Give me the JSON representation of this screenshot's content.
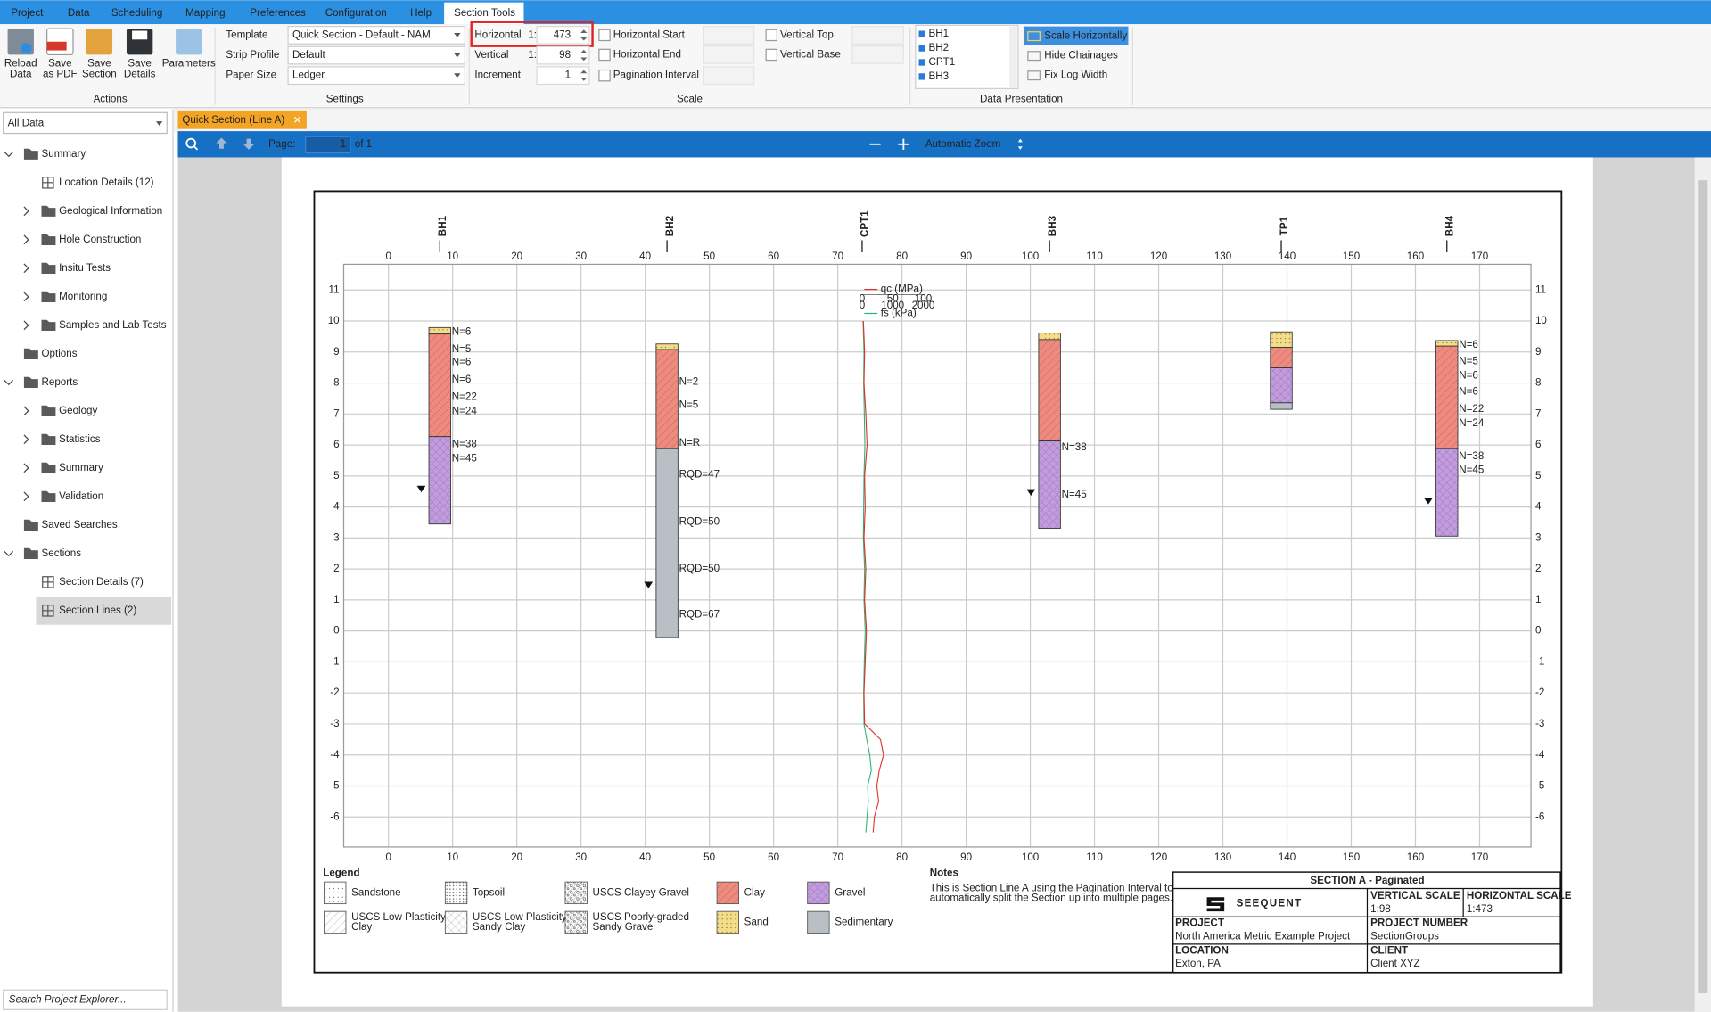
{
  "menu": [
    "Project",
    "Data",
    "Scheduling",
    "Mapping",
    "Preferences",
    "Configuration",
    "Help",
    "Section Tools"
  ],
  "ribbon": {
    "groups": [
      "Actions",
      "Settings",
      "Scale",
      "Data Presentation"
    ],
    "buttons": [
      [
        "Reload",
        "Data"
      ],
      [
        "Save",
        "as PDF"
      ],
      [
        "Save",
        "Section"
      ],
      [
        "Save",
        "Details"
      ],
      [
        "Parameters"
      ]
    ],
    "settings": [
      {
        "label": "Template",
        "value": "Quick Section - Default - NAM"
      },
      {
        "label": "Strip Profile",
        "value": "Default"
      },
      {
        "label": "Paper Size",
        "value": "Ledger"
      }
    ],
    "scale_inputs": [
      {
        "label": "Horizontal",
        "prefix": "1:",
        "value": 473
      },
      {
        "label": "Vertical",
        "prefix": "1:",
        "value": 98
      },
      {
        "label": "Increment",
        "value": 1
      }
    ],
    "scale_checks": [
      "Horizontal Start",
      "Horizontal End",
      "Pagination Interval",
      "Vertical Top",
      "Vertical Base"
    ],
    "locations": [
      "BH1",
      "BH2",
      "CPT1",
      "BH3"
    ],
    "options": [
      "Scale Horizontally",
      "Hide Chainages",
      "Fix Log Width"
    ]
  },
  "explorer": {
    "filter": "All Data",
    "tree": [
      "Summary",
      "Location Details (12)",
      "Geological Information",
      "Hole Construction",
      "Insitu Tests",
      "Monitoring",
      "Samples and Lab Tests",
      "Options",
      "Reports",
      "Geology",
      "Statistics",
      "Summary",
      "Validation",
      "Saved Searches",
      "Sections",
      "Section Details (7)",
      "Section Lines (2)"
    ],
    "search": "Search Project Explorer..."
  },
  "viewer": {
    "tab": "Quick Section (Line A)",
    "page_label": "Page:",
    "page": 1,
    "page_count": "of 1",
    "zoom": "Automatic Zoom"
  },
  "section": {
    "xlim": [
      -6.97,
      178.0
    ],
    "ylim": [
      -6.97,
      11.83
    ],
    "xticks": [
      0,
      10,
      20,
      30,
      40,
      50,
      60,
      70,
      80,
      90,
      100,
      110,
      120,
      130,
      140,
      150,
      160,
      170
    ],
    "yticks": [
      -6,
      -5,
      -4,
      -3,
      -2,
      -1,
      0,
      1,
      2,
      3,
      4,
      5,
      6,
      7,
      8,
      9,
      10,
      11
    ],
    "boreholes": [
      {
        "name": "BH1",
        "x": 8.0,
        "water": 4.58,
        "layers": [
          {
            "soil": "Sand",
            "top": 9.79,
            "bottom": 9.58
          },
          {
            "soil": "Clay",
            "top": 9.58,
            "bottom": 6.27
          },
          {
            "soil": "Gravel",
            "top": 6.27,
            "bottom": 3.45
          }
        ],
        "labels": [
          {
            "text": "N=6",
            "elev": 9.65
          },
          {
            "text": "N=5",
            "elev": 9.08
          },
          {
            "text": "N=6",
            "elev": 8.66
          },
          {
            "text": "N=6",
            "elev": 8.1
          },
          {
            "text": "N=22",
            "elev": 7.54
          },
          {
            "text": "N=24",
            "elev": 7.08
          },
          {
            "text": "N=38",
            "elev": 6.02
          },
          {
            "text": "N=45",
            "elev": 5.56
          }
        ]
      },
      {
        "name": "BH2",
        "x": 43.4,
        "water": 1.48,
        "layers": [
          {
            "soil": "Sand",
            "top": 9.26,
            "bottom": 9.08
          },
          {
            "soil": "Clay",
            "top": 9.08,
            "bottom": 5.88
          },
          {
            "soil": "Sedimentary",
            "top": 5.88,
            "bottom": -0.21
          }
        ],
        "labels": [
          {
            "text": "N=2",
            "elev": 8.03
          },
          {
            "text": "N=5",
            "elev": 7.29
          },
          {
            "text": "N=R",
            "elev": 6.06
          },
          {
            "text": "RQD=47",
            "elev": 5.04
          },
          {
            "text": "RQD=50",
            "elev": 3.52
          },
          {
            "text": "RQD=50",
            "elev": 2.01
          },
          {
            "text": "RQD=67",
            "elev": 0.53
          }
        ]
      },
      {
        "name": "BH3",
        "x": 103.0,
        "water": 4.47,
        "layers": [
          {
            "soil": "Sand",
            "top": 9.61,
            "bottom": 9.4
          },
          {
            "soil": "Clay",
            "top": 9.4,
            "bottom": 6.13
          },
          {
            "soil": "Gravel",
            "top": 6.13,
            "bottom": 3.31
          }
        ],
        "labels": [
          {
            "text": "N=38",
            "elev": 5.92
          },
          {
            "text": "N=45",
            "elev": 4.4
          }
        ]
      },
      {
        "name": "TP1",
        "x": 139.1,
        "layers": [
          {
            "soil": "Sand",
            "top": 9.65,
            "bottom": 9.15
          },
          {
            "soil": "Clay",
            "top": 9.15,
            "bottom": 8.49
          },
          {
            "soil": "Gravel",
            "top": 8.49,
            "bottom": 7.36
          },
          {
            "soil": "Sedimentary",
            "top": 7.36,
            "bottom": 7.15
          }
        ],
        "labels": []
      },
      {
        "name": "BH4",
        "x": 164.9,
        "water": 4.19,
        "layers": [
          {
            "soil": "Sand",
            "top": 9.37,
            "bottom": 9.19
          },
          {
            "soil": "Clay",
            "top": 9.19,
            "bottom": 5.88
          },
          {
            "soil": "Gravel",
            "top": 5.88,
            "bottom": 3.06
          }
        ],
        "labels": [
          {
            "text": "N=6",
            "elev": 9.23
          },
          {
            "text": "N=5",
            "elev": 8.7
          },
          {
            "text": "N=6",
            "elev": 8.24
          },
          {
            "text": "N=6",
            "elev": 7.71
          },
          {
            "text": "N=22",
            "elev": 7.15
          },
          {
            "text": "N=24",
            "elev": 6.69
          },
          {
            "text": "N=38",
            "elev": 5.63
          },
          {
            "text": "N=45",
            "elev": 5.18
          }
        ]
      }
    ],
    "cpt": {
      "name": "CPT1",
      "x": 73.8,
      "qc_label": "qc (MPa)",
      "fs_label": "fs (kPa)",
      "qc_scale": [
        0,
        50,
        100
      ],
      "fs_scale": [
        0,
        1000,
        2000
      ],
      "elev": [
        10,
        9,
        8,
        7,
        6,
        5,
        4,
        3,
        2,
        1,
        0,
        -1,
        -2,
        -3,
        -3.5,
        -4,
        -4.5,
        -5,
        -5.5,
        -6,
        -6.5
      ],
      "qc": [
        2,
        4,
        3,
        6,
        8,
        4,
        5,
        3,
        6,
        4,
        7,
        5,
        3,
        4,
        30,
        35,
        28,
        24,
        27,
        20,
        18
      ],
      "fs": [
        30,
        60,
        50,
        70,
        90,
        60,
        50,
        40,
        80,
        60,
        100,
        70,
        50,
        60,
        150,
        250,
        300,
        180,
        200,
        160,
        120
      ]
    },
    "legend": {
      "title": "Legend",
      "items": [
        {
          "lines": [
            "Sandstone"
          ],
          "color": "#ffffff",
          "pattern": "dots"
        },
        {
          "lines": [
            "Topsoil"
          ],
          "color": "#ffffff",
          "pattern": "dense"
        },
        {
          "lines": [
            "USCS Clayey Gravel"
          ],
          "color": "#ffffff",
          "pattern": "gravel"
        },
        {
          "lines": [
            "Clay"
          ],
          "color": "#f08a7e",
          "pattern": "hatch"
        },
        {
          "lines": [
            "Gravel"
          ],
          "color": "#c39be0",
          "pattern": "cross"
        },
        {
          "lines": [
            "USCS Low Plasticity",
            "Clay"
          ],
          "color": "#ffffff",
          "pattern": "hatch"
        },
        {
          "lines": [
            "USCS Low Plasticity",
            "Sandy Clay"
          ],
          "color": "#ffffff",
          "pattern": "cross"
        },
        {
          "lines": [
            "USCS Poorly-graded",
            "Sandy Gravel"
          ],
          "color": "#ffffff",
          "pattern": "gravel"
        },
        {
          "lines": [
            "Sand"
          ],
          "color": "#f5dd85",
          "pattern": "dots"
        },
        {
          "lines": [
            "Sedimentary"
          ],
          "color": "#b9bfc5"
        }
      ]
    },
    "notes": {
      "title": "Notes",
      "lines": [
        "This is Section Line A using the Pagination Interval to",
        "automatically split the Section up into multiple pages."
      ]
    },
    "title_block": {
      "title": "SECTION A - Paginated",
      "logo": "SEEQUENT",
      "fields": [
        {
          "label": "VERTICAL SCALE",
          "value": "1:98"
        },
        {
          "label": "HORIZONTAL SCALE",
          "value": "1:473"
        },
        {
          "label": "PROJECT",
          "value": "North America Metric Example Project"
        },
        {
          "label": "PROJECT NUMBER",
          "value": "SectionGroups"
        },
        {
          "label": "LOCATION",
          "value": "Exton, PA"
        },
        {
          "label": "CLIENT",
          "value": "Client XYZ"
        }
      ]
    }
  }
}
